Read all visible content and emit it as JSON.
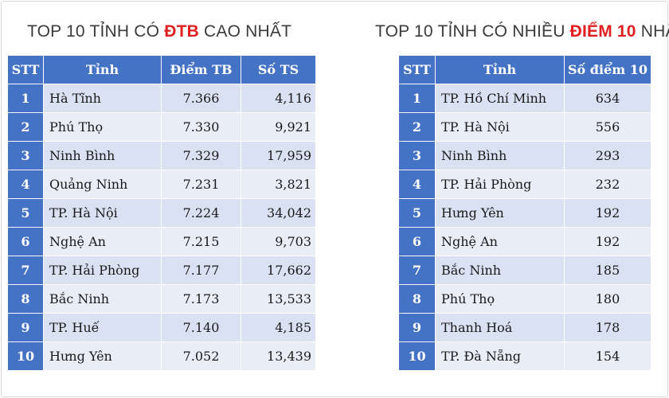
{
  "left_title": {
    "prefix": "TOP 10 TỈNH CÓ ",
    "highlight": "ĐTB",
    "suffix": " CAO NHẤT"
  },
  "right_title": {
    "prefix": "TOP 10 TỈNH CÓ NHIỀU ",
    "highlight": "ĐIỂM 10",
    "suffix": " NHẤT"
  },
  "colors": {
    "header": "#4472c4",
    "highlight": "#e02020",
    "row": "#d9e1f2",
    "row_alt": "#e9edf6"
  },
  "left_table": {
    "headers": [
      "STT",
      "Tỉnh",
      "Điểm TB",
      "Số TS"
    ],
    "rows": [
      [
        "1",
        "Hà Tĩnh",
        "7.366",
        "4,116"
      ],
      [
        "2",
        "Phú Thọ",
        "7.330",
        "9,921"
      ],
      [
        "3",
        "Ninh Bình",
        "7.329",
        "17,959"
      ],
      [
        "4",
        "Quảng Ninh",
        "7.231",
        "3,821"
      ],
      [
        "5",
        "TP. Hà Nội",
        "7.224",
        "34,042"
      ],
      [
        "6",
        "Nghệ An",
        "7.215",
        "9,703"
      ],
      [
        "7",
        "TP. Hải Phòng",
        "7.177",
        "17,662"
      ],
      [
        "8",
        "Bắc Ninh",
        "7.173",
        "13,533"
      ],
      [
        "9",
        "TP. Huế",
        "7.140",
        "4,185"
      ],
      [
        "10",
        "Hưng Yên",
        "7.052",
        "13,439"
      ]
    ]
  },
  "right_table": {
    "headers": [
      "STT",
      "Tỉnh",
      "Số điểm 10"
    ],
    "rows": [
      [
        "1",
        "TP. Hồ Chí Minh",
        "634"
      ],
      [
        "2",
        "TP. Hà Nội",
        "556"
      ],
      [
        "3",
        "Ninh Bình",
        "293"
      ],
      [
        "4",
        "TP. Hải Phòng",
        "232"
      ],
      [
        "5",
        "Hưng Yên",
        "192"
      ],
      [
        "6",
        "Nghệ An",
        "192"
      ],
      [
        "7",
        "Bắc Ninh",
        "185"
      ],
      [
        "8",
        "Phú Thọ",
        "180"
      ],
      [
        "9",
        "Thanh Hoá",
        "178"
      ],
      [
        "10",
        "TP. Đà Nẵng",
        "154"
      ]
    ]
  }
}
